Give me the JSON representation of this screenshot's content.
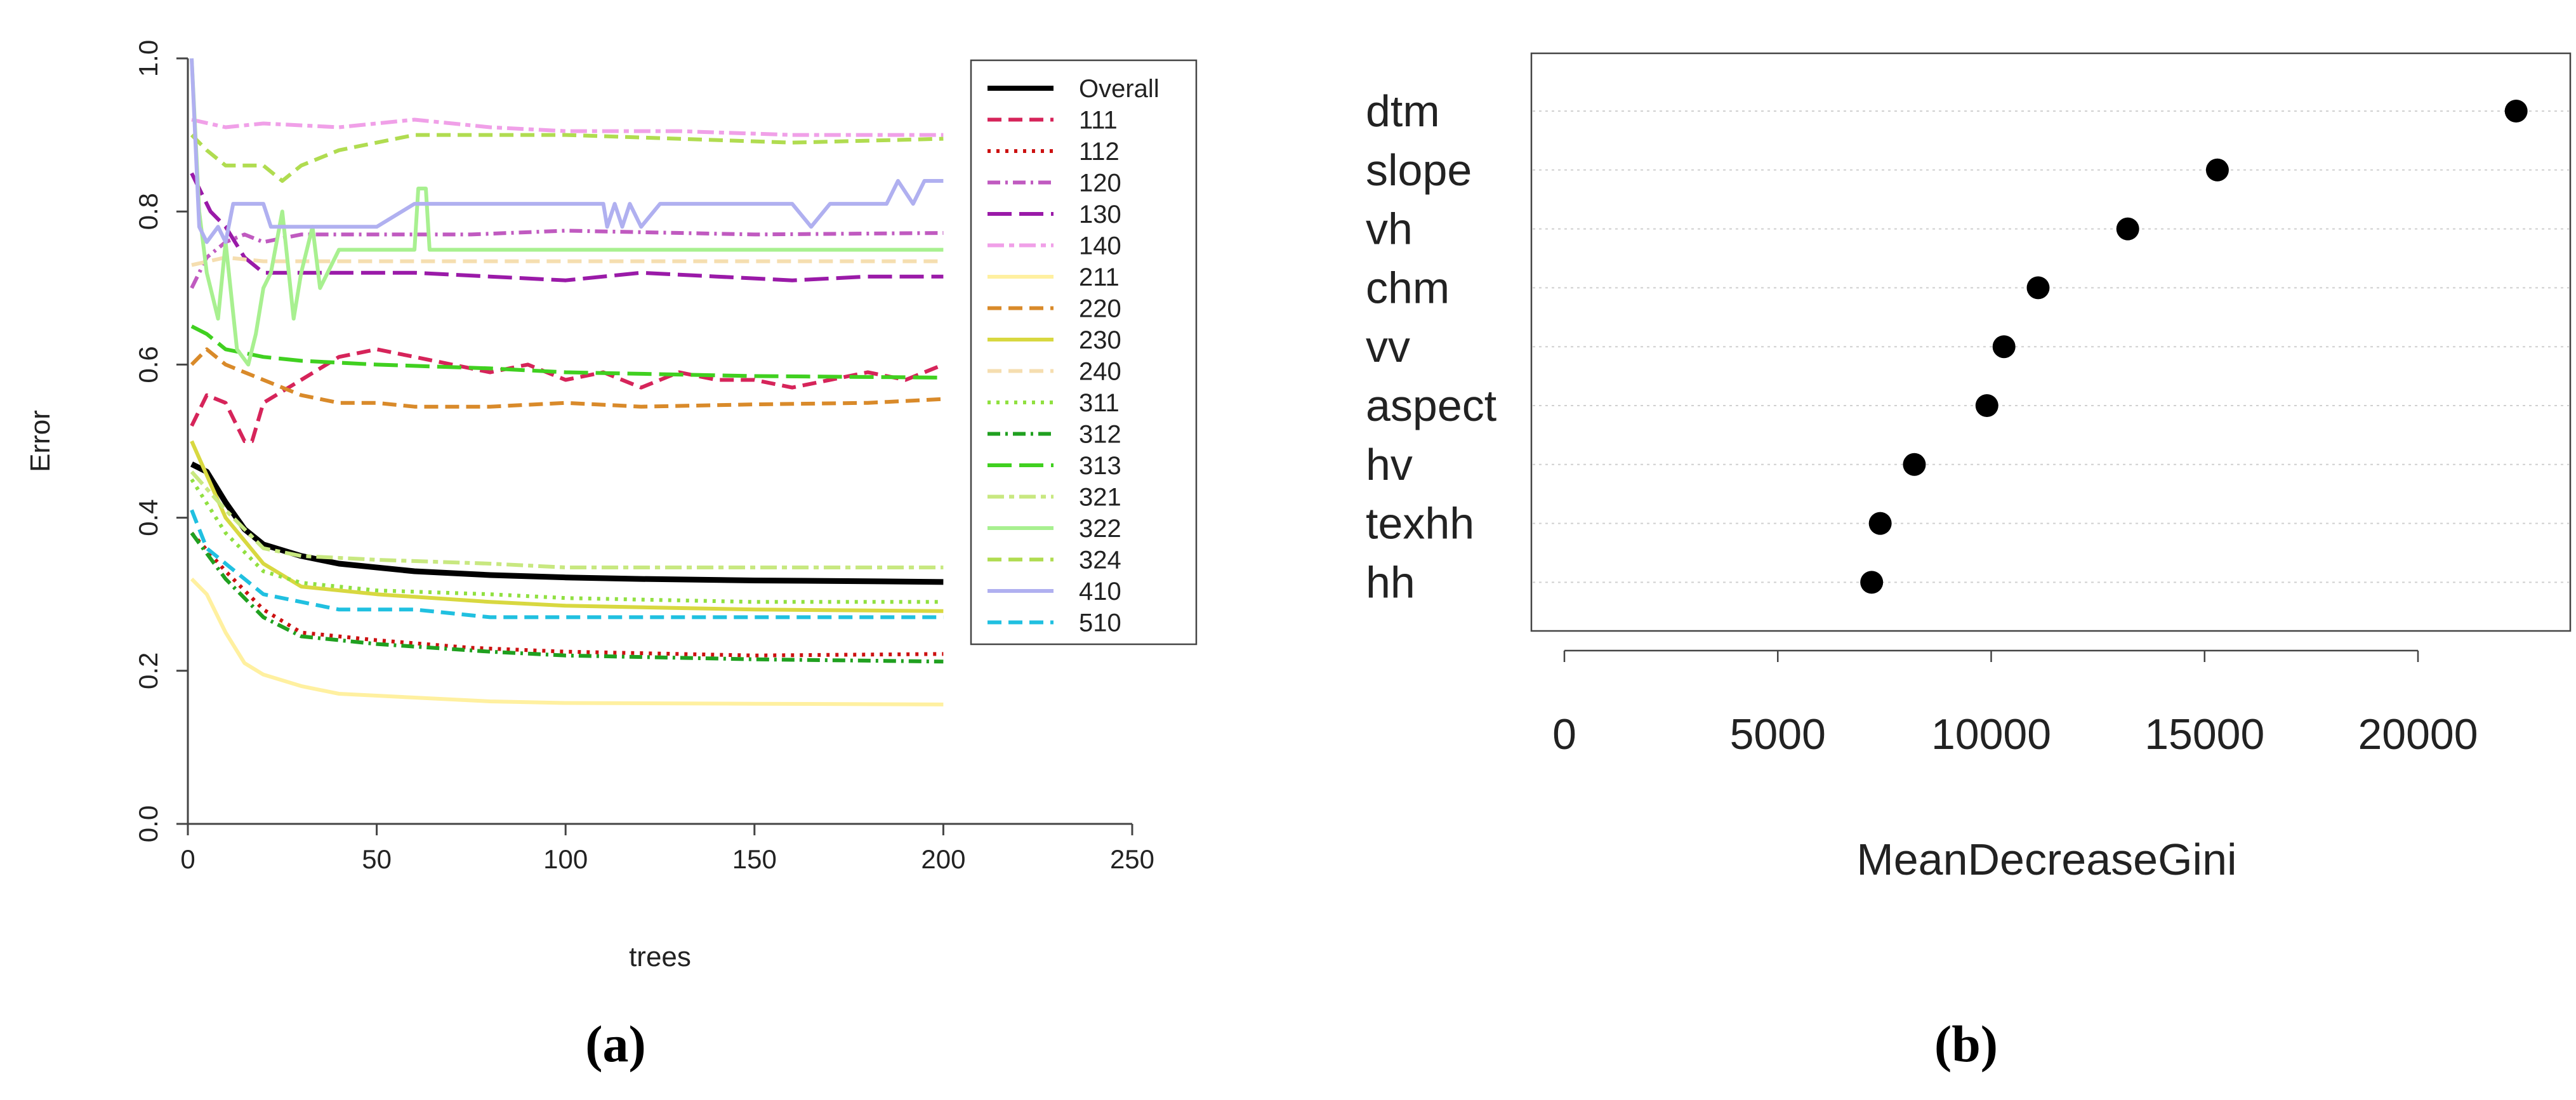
{
  "panel_labels": [
    "(a)",
    "(b)"
  ],
  "chart_data": [
    {
      "type": "line",
      "xlabel": "trees",
      "ylabel": "Error",
      "xlim": [
        0,
        250
      ],
      "ylim": [
        0,
        1
      ],
      "x_ticks": [
        0,
        50,
        100,
        150,
        200,
        250
      ],
      "y_ticks": [
        0.0,
        0.2,
        0.4,
        0.6,
        0.8,
        1.0
      ],
      "legend_position": "top-right",
      "series": [
        {
          "name": "Overall",
          "color": "#000000",
          "dash": "solid",
          "x": [
            1,
            5,
            10,
            15,
            20,
            30,
            40,
            60,
            80,
            100,
            120,
            150,
            180,
            200
          ],
          "values": [
            0.47,
            0.46,
            0.42,
            0.385,
            0.365,
            0.35,
            0.34,
            0.33,
            0.325,
            0.322,
            0.32,
            0.318,
            0.317,
            0.316
          ]
        },
        {
          "name": "111",
          "color": "#d6245a",
          "dash": "dashed",
          "x": [
            1,
            5,
            10,
            15,
            17,
            20,
            30,
            40,
            50,
            60,
            70,
            80,
            90,
            100,
            110,
            120,
            130,
            140,
            150,
            160,
            170,
            180,
            190,
            200
          ],
          "values": [
            0.52,
            0.56,
            0.55,
            0.5,
            0.5,
            0.55,
            0.58,
            0.61,
            0.62,
            0.61,
            0.6,
            0.59,
            0.6,
            0.58,
            0.59,
            0.57,
            0.59,
            0.58,
            0.58,
            0.57,
            0.58,
            0.59,
            0.58,
            0.6
          ]
        },
        {
          "name": "112",
          "color": "#cc1111",
          "dash": "dotted",
          "x": [
            1,
            10,
            20,
            30,
            50,
            75,
            100,
            150,
            200
          ],
          "values": [
            0.38,
            0.33,
            0.28,
            0.25,
            0.24,
            0.23,
            0.225,
            0.22,
            0.222
          ]
        },
        {
          "name": "120",
          "color": "#c05ac0",
          "dash": "dashdot",
          "x": [
            1,
            5,
            10,
            15,
            20,
            30,
            50,
            75,
            100,
            150,
            200
          ],
          "values": [
            0.7,
            0.74,
            0.76,
            0.77,
            0.76,
            0.77,
            0.77,
            0.77,
            0.775,
            0.77,
            0.772
          ]
        },
        {
          "name": "130",
          "color": "#9a1aa8",
          "dash": "longdash",
          "x": [
            1,
            3,
            6,
            10,
            15,
            20,
            30,
            40,
            60,
            80,
            100,
            120,
            140,
            160,
            180,
            200
          ],
          "values": [
            0.85,
            0.83,
            0.8,
            0.78,
            0.74,
            0.72,
            0.72,
            0.72,
            0.72,
            0.715,
            0.71,
            0.72,
            0.715,
            0.71,
            0.715,
            0.715
          ]
        },
        {
          "name": "140",
          "color": "#f0a0e8",
          "dash": "twodash",
          "x": [
            1,
            10,
            20,
            40,
            60,
            80,
            100,
            130,
            160,
            200
          ],
          "values": [
            0.92,
            0.91,
            0.915,
            0.91,
            0.92,
            0.91,
            0.905,
            0.905,
            0.9,
            0.9
          ]
        },
        {
          "name": "211",
          "color": "#fff0a0",
          "dash": "solid",
          "x": [
            1,
            5,
            10,
            15,
            20,
            30,
            40,
            60,
            80,
            100,
            150,
            200
          ],
          "values": [
            0.32,
            0.3,
            0.25,
            0.21,
            0.195,
            0.18,
            0.17,
            0.165,
            0.16,
            0.158,
            0.157,
            0.156
          ]
        },
        {
          "name": "220",
          "color": "#d98a2a",
          "dash": "dashed",
          "x": [
            1,
            5,
            10,
            20,
            30,
            40,
            50,
            60,
            80,
            100,
            120,
            150,
            180,
            200
          ],
          "values": [
            0.6,
            0.62,
            0.6,
            0.58,
            0.56,
            0.55,
            0.55,
            0.545,
            0.545,
            0.55,
            0.545,
            0.548,
            0.55,
            0.555
          ]
        },
        {
          "name": "230",
          "color": "#d8d840",
          "dash": "solid",
          "x": [
            1,
            10,
            20,
            30,
            50,
            80,
            100,
            150,
            200
          ],
          "values": [
            0.5,
            0.4,
            0.34,
            0.31,
            0.3,
            0.29,
            0.285,
            0.28,
            0.278
          ]
        },
        {
          "name": "240",
          "color": "#f5deb0",
          "dash": "dashed",
          "x": [
            1,
            10,
            20,
            40,
            60,
            100,
            150,
            200
          ],
          "values": [
            0.73,
            0.74,
            0.735,
            0.735,
            0.735,
            0.735,
            0.735,
            0.735
          ]
        },
        {
          "name": "311",
          "color": "#90e040",
          "dash": "dotted",
          "x": [
            1,
            10,
            20,
            30,
            50,
            80,
            100,
            150,
            200
          ],
          "values": [
            0.45,
            0.38,
            0.33,
            0.315,
            0.305,
            0.3,
            0.295,
            0.29,
            0.29
          ]
        },
        {
          "name": "312",
          "color": "#20a020",
          "dash": "dashdot",
          "x": [
            1,
            10,
            20,
            30,
            50,
            80,
            100,
            150,
            200
          ],
          "values": [
            0.38,
            0.32,
            0.27,
            0.245,
            0.235,
            0.225,
            0.22,
            0.215,
            0.212
          ]
        },
        {
          "name": "313",
          "color": "#40d020",
          "dash": "longdash",
          "x": [
            1,
            5,
            10,
            20,
            30,
            50,
            80,
            100,
            150,
            200
          ],
          "values": [
            0.65,
            0.64,
            0.62,
            0.61,
            0.605,
            0.6,
            0.595,
            0.59,
            0.585,
            0.583
          ]
        },
        {
          "name": "321",
          "color": "#c8e880",
          "dash": "twodash",
          "x": [
            1,
            10,
            20,
            30,
            50,
            80,
            100,
            150,
            200
          ],
          "values": [
            0.46,
            0.41,
            0.36,
            0.35,
            0.345,
            0.34,
            0.335,
            0.335,
            0.335
          ]
        },
        {
          "name": "322",
          "color": "#a8f090",
          "dash": "solid",
          "x": [
            1,
            3,
            5,
            8,
            10,
            13,
            16,
            18,
            20,
            22,
            25,
            28,
            30,
            33,
            35,
            40,
            50,
            60,
            61,
            63,
            64,
            70,
            100,
            150,
            200
          ],
          "values": [
            1.0,
            0.8,
            0.72,
            0.66,
            0.76,
            0.62,
            0.6,
            0.64,
            0.7,
            0.72,
            0.8,
            0.66,
            0.72,
            0.78,
            0.7,
            0.75,
            0.75,
            0.75,
            0.83,
            0.83,
            0.75,
            0.75,
            0.75,
            0.75,
            0.75
          ]
        },
        {
          "name": "324",
          "color": "#b0dc50",
          "dash": "dashed",
          "x": [
            1,
            5,
            10,
            20,
            25,
            30,
            40,
            60,
            80,
            100,
            130,
            160,
            200
          ],
          "values": [
            0.9,
            0.88,
            0.86,
            0.86,
            0.84,
            0.86,
            0.88,
            0.9,
            0.9,
            0.9,
            0.895,
            0.89,
            0.895
          ]
        },
        {
          "name": "410",
          "color": "#b0b0f0",
          "dash": "solid",
          "x": [
            1,
            3,
            5,
            8,
            10,
            12,
            15,
            20,
            22,
            25,
            30,
            40,
            50,
            60,
            75,
            100,
            110,
            111,
            113,
            115,
            117,
            120,
            125,
            160,
            165,
            170,
            185,
            188,
            192,
            195,
            200
          ],
          "values": [
            1.0,
            0.78,
            0.76,
            0.78,
            0.76,
            0.81,
            0.81,
            0.81,
            0.78,
            0.78,
            0.78,
            0.78,
            0.78,
            0.81,
            0.81,
            0.81,
            0.81,
            0.78,
            0.81,
            0.78,
            0.81,
            0.78,
            0.81,
            0.81,
            0.78,
            0.81,
            0.81,
            0.84,
            0.81,
            0.84,
            0.84
          ]
        },
        {
          "name": "510",
          "color": "#20c0e0",
          "dash": "dashed",
          "x": [
            1,
            5,
            10,
            15,
            20,
            30,
            40,
            60,
            80,
            100,
            130,
            160,
            200
          ],
          "values": [
            0.41,
            0.36,
            0.34,
            0.32,
            0.3,
            0.29,
            0.28,
            0.28,
            0.27,
            0.27,
            0.27,
            0.27,
            0.27
          ]
        }
      ]
    },
    {
      "type": "scatter",
      "xlabel": "MeanDecreaseGini",
      "ylabel": "",
      "xlim": [
        0,
        23000
      ],
      "x_ticks": [
        0,
        5000,
        10000,
        15000,
        20000
      ],
      "categories": [
        "dtm",
        "slope",
        "vh",
        "chm",
        "vv",
        "aspect",
        "hv",
        "texhh",
        "hh"
      ],
      "values": [
        22300,
        15300,
        13200,
        11100,
        10300,
        9900,
        8200,
        7400,
        7200
      ]
    }
  ]
}
